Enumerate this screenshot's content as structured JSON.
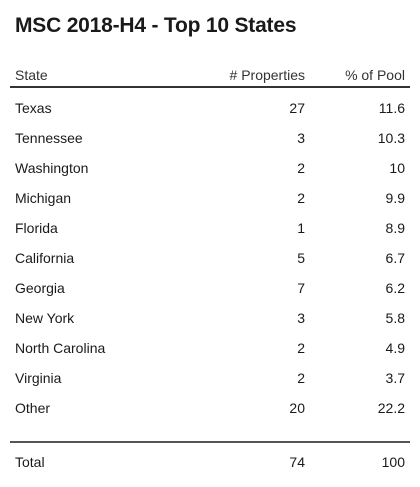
{
  "title": "MSC 2018-H4 - Top 10 States",
  "headers": {
    "state": "State",
    "properties": "# Properties",
    "pct": "% of Pool"
  },
  "rows": [
    {
      "state": "Texas",
      "properties": "27",
      "pct": "11.6"
    },
    {
      "state": "Tennessee",
      "properties": "3",
      "pct": "10.3"
    },
    {
      "state": "Washington",
      "properties": "2",
      "pct": "10"
    },
    {
      "state": "Michigan",
      "properties": "2",
      "pct": "9.9"
    },
    {
      "state": "Florida",
      "properties": "1",
      "pct": "8.9"
    },
    {
      "state": "California",
      "properties": "5",
      "pct": "6.7"
    },
    {
      "state": "Georgia",
      "properties": "7",
      "pct": "6.2"
    },
    {
      "state": "New York",
      "properties": "3",
      "pct": "5.8"
    },
    {
      "state": "North Carolina",
      "properties": "2",
      "pct": "4.9"
    },
    {
      "state": "Virginia",
      "properties": "2",
      "pct": "3.7"
    },
    {
      "state": "Other",
      "properties": "20",
      "pct": "22.2"
    }
  ],
  "total": {
    "label": "Total",
    "properties": "74",
    "pct": "100"
  }
}
